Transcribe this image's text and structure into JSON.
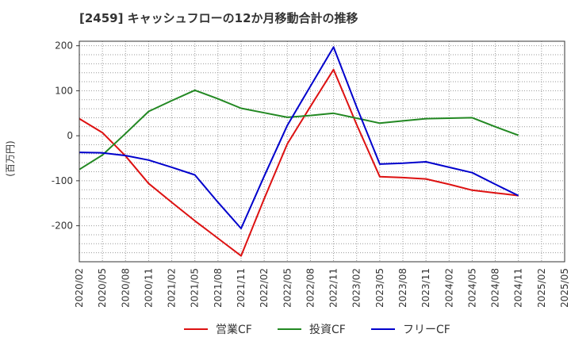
{
  "chart_data": {
    "type": "line",
    "title": "[2459]  キャッシュフローの12か月移動合計の推移",
    "ylabel": "(百万円)",
    "xlabel": "",
    "categories": [
      "2020/02",
      "2020/05",
      "2020/08",
      "2020/11",
      "2021/02",
      "2021/05",
      "2021/08",
      "2021/11",
      "2022/02",
      "2022/05",
      "2022/08",
      "2022/11",
      "2023/02",
      "2023/05",
      "2023/08",
      "2023/11",
      "2024/02",
      "2024/05",
      "2024/08",
      "2024/11",
      "2025/02",
      "2025/05"
    ],
    "ylim": [
      -280,
      210
    ],
    "yticks": [
      -200,
      -100,
      0,
      100,
      200
    ],
    "grid": true,
    "legend_position": "bottom",
    "series": [
      {
        "name": "営業CF",
        "color": "#dd1111",
        "values": [
          38,
          7,
          -45,
          -106,
          -148,
          -189,
          -228,
          -267,
          -140,
          -18,
          65,
          147,
          25,
          -91,
          -93,
          -96,
          -108,
          -121,
          -127,
          -133,
          null,
          null
        ]
      },
      {
        "name": "投資CF",
        "color": "#228822",
        "values": [
          -75,
          -43,
          5,
          54,
          78,
          101,
          82,
          61,
          51,
          41,
          45,
          50,
          39,
          28,
          33,
          38,
          39,
          40,
          20,
          1,
          null,
          null
        ]
      },
      {
        "name": "フリーCF",
        "color": "#0000cc",
        "values": [
          -37,
          -38,
          -44,
          -54,
          -70,
          -87,
          -148,
          -206,
          -90,
          23,
          110,
          197,
          64,
          -63,
          -61,
          -58,
          -70,
          -82,
          -108,
          -133,
          null,
          null
        ]
      }
    ]
  }
}
